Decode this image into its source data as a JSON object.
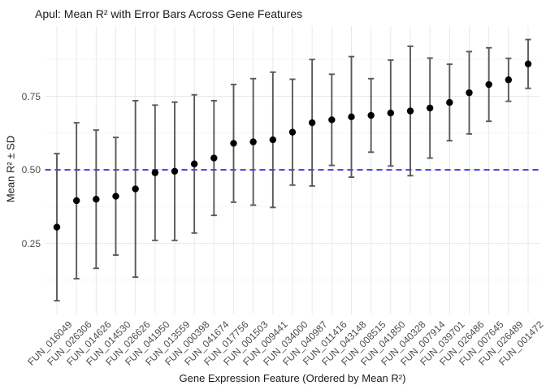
{
  "title": "Apul: Mean R² with Error Bars Across Gene Features",
  "colors": {
    "background": "#ffffff",
    "point": "#000000",
    "error_bar": "#595959",
    "grid_major": "#e9e9e9",
    "grid_minor": "#f5f5f5",
    "reference": "#0b0bee",
    "axis_text": "#4d4d4d",
    "title_text": "#1a1a1a"
  },
  "chart_data": {
    "type": "scatter",
    "title": "Apul: Mean R² with Error Bars Across Gene Features",
    "xlabel": "Gene Expression Feature (Ordered by Mean R²)",
    "ylabel": "Mean R² ± SD",
    "legend": "none",
    "grid": "on",
    "ylim": [
      0.0,
      1.0
    ],
    "y_ticks": [
      0.25,
      0.5,
      0.75
    ],
    "y_tick_labels": [
      "0.25",
      "0.50",
      "0.75"
    ],
    "y_minor_ticks": [
      0.125,
      0.375,
      0.625,
      0.875
    ],
    "reference_line": {
      "y": 0.5,
      "style": "dashed"
    },
    "categories": [
      "FUN_016049",
      "FUN_026306",
      "FUN_014626",
      "FUN_014530",
      "FUN_026626",
      "FUN_041950",
      "FUN_013559",
      "FUN_000398",
      "FUN_041674",
      "FUN_017756",
      "FUN_001503",
      "FUN_009441",
      "FUN_034000",
      "FUN_040987",
      "FUN_011416",
      "FUN_043148",
      "FUN_008515",
      "FUN_041850",
      "FUN_040328",
      "FUN_007914",
      "FUN_039701",
      "FUN_026486",
      "FUN_007645",
      "FUN_026489",
      "FUN_001472"
    ],
    "series": [
      {
        "name": "Mean R²",
        "values": [
          0.305,
          0.395,
          0.4,
          0.41,
          0.435,
          0.49,
          0.495,
          0.52,
          0.54,
          0.59,
          0.595,
          0.602,
          0.628,
          0.66,
          0.67,
          0.68,
          0.685,
          0.693,
          0.7,
          0.71,
          0.729,
          0.762,
          0.79,
          0.806,
          0.86
        ],
        "sd": [
          0.25,
          0.265,
          0.235,
          0.2,
          0.3,
          0.23,
          0.235,
          0.235,
          0.195,
          0.2,
          0.215,
          0.23,
          0.18,
          0.215,
          0.155,
          0.205,
          0.125,
          0.18,
          0.22,
          0.17,
          0.13,
          0.14,
          0.125,
          0.073,
          0.083
        ]
      }
    ]
  }
}
